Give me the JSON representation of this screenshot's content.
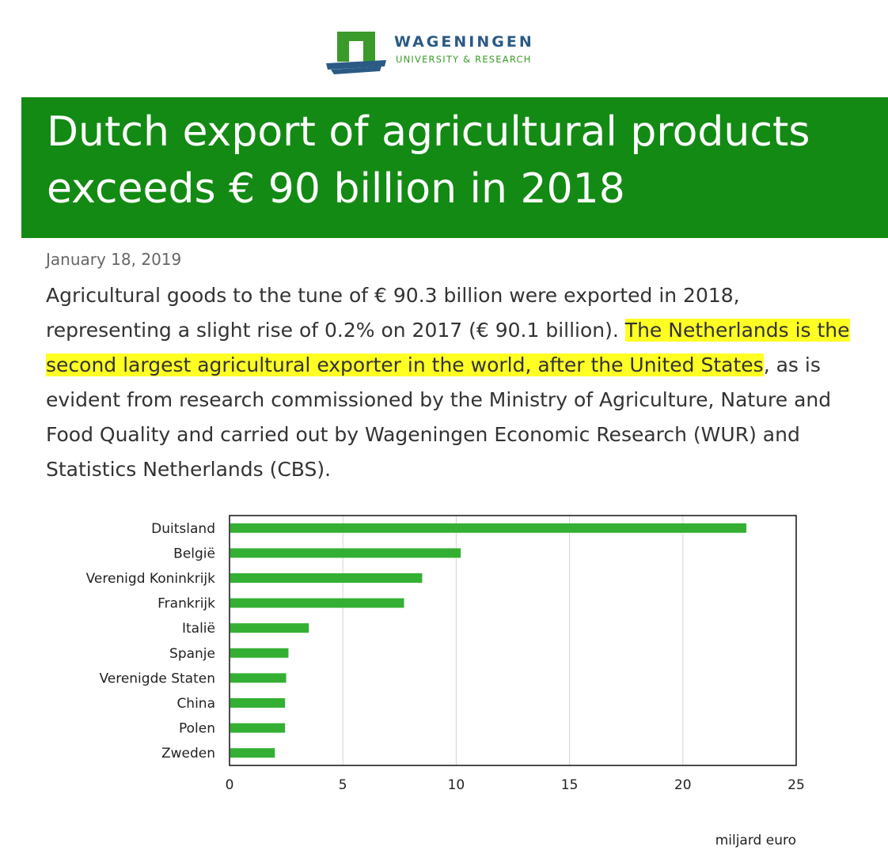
{
  "logo": {
    "name": "WAGENINGEN",
    "subtitle": "UNIVERSITY & RESEARCH"
  },
  "article": {
    "title": "Dutch export of agricultural products exceeds € 90 billion in 2018",
    "date": "January 18, 2019",
    "body_part1": "Agricultural goods to the tune of € 90.3 billion were exported in 2018, representing a slight rise of 0.2% on 2017 (€ 90.1 billion). ",
    "body_highlight": "The Netherlands is the second largest agricultural exporter in the world, after the United States",
    "body_part2": ", as is evident from research commissioned by the Ministry of Agriculture, Nature and Food Quality and carried out by Wageningen Economic Research (WUR) and Statistics Netherlands (CBS)."
  },
  "colors": {
    "banner": "#138a13",
    "highlight": "#ffff24",
    "bar": "#33b033",
    "logo_blue": "#2b5b85",
    "logo_green": "#3a9a2a"
  },
  "chart_data": {
    "type": "bar",
    "orientation": "horizontal",
    "categories": [
      "Duitsland",
      "België",
      "Verenigd Koninkrijk",
      "Frankrijk",
      "Italië",
      "Spanje",
      "Verenigde Staten",
      "China",
      "Polen",
      "Zweden"
    ],
    "values": [
      22.8,
      10.2,
      8.5,
      7.7,
      3.5,
      2.6,
      2.5,
      2.45,
      2.45,
      2.0
    ],
    "xlim": [
      0,
      25
    ],
    "xticks": [
      "0",
      "5",
      "10",
      "15",
      "20",
      "25"
    ],
    "xlabel": "miljard euro",
    "ylabel": "",
    "grid": "vertical"
  }
}
